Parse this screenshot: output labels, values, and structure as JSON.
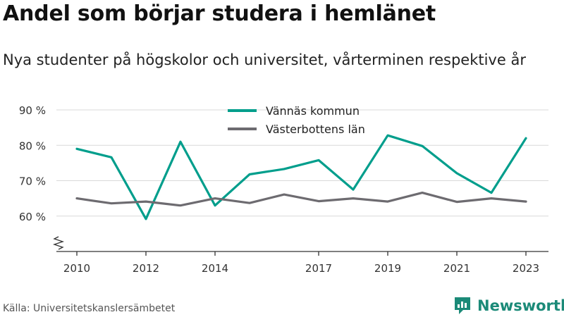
{
  "header": {
    "title": "Andel som börjar studera i hemlänet",
    "subtitle": "Nya studenter på högskolor och universitet, vårterminen respektive år"
  },
  "footer": {
    "source": "Källa: Universitetskanslersämbetet",
    "brand": "Newsworthy"
  },
  "colors": {
    "series_1": "#009e8c",
    "series_2": "#6d6b70",
    "grid": "#d9d9d9",
    "axis": "#333333",
    "brand": "#1b8a78"
  },
  "icons": [
    "newsworthy-logo-icon",
    "axis-break-icon"
  ],
  "chart_data": {
    "type": "line",
    "title": "Andel som börjar studera i hemlänet",
    "subtitle": "Nya studenter på högskolor och universitet, vårterminen respektive år",
    "xlabel": "",
    "ylabel": "",
    "x": [
      2010,
      2011,
      2012,
      2013,
      2014,
      2015,
      2016,
      2017,
      2018,
      2019,
      2020,
      2021,
      2022,
      2023
    ],
    "x_ticks": [
      "2010",
      "2012",
      "2014",
      "2017",
      "2019",
      "2021",
      "2023"
    ],
    "y_ticks": [
      "60 %",
      "70 %",
      "80 %",
      "90 %"
    ],
    "y_tick_values": [
      60,
      70,
      80,
      90
    ],
    "ylim": [
      50,
      90
    ],
    "xlim": [
      2010,
      2023
    ],
    "y_axis_break": true,
    "grid": "horizontal",
    "legend_position": "top-center",
    "series": [
      {
        "name": "Vännäs kommun",
        "color": "#009e8c",
        "values": [
          79,
          76.6,
          59.2,
          81,
          63,
          71.8,
          73.3,
          75.8,
          67.5,
          82.8,
          79.8,
          72.1,
          66.6,
          82
        ]
      },
      {
        "name": "Västerbottens län",
        "color": "#6d6b70",
        "values": [
          65,
          63.6,
          64.1,
          63,
          65,
          63.7,
          66.1,
          64.2,
          65,
          64.1,
          66.6,
          64,
          65,
          64.1
        ]
      }
    ]
  }
}
